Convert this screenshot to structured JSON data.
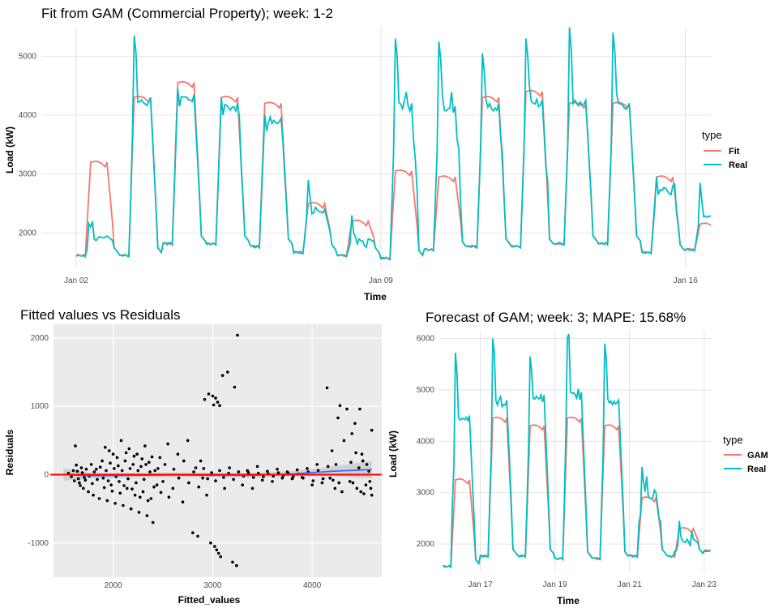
{
  "chart_data": [
    {
      "type": "line",
      "title": "Fit from GAM (Commercial Property); week: 1-2",
      "xlabel": "Time",
      "ylabel": "Load (kW)",
      "x_ticks": [
        "Jan 02",
        "Jan 09",
        "Jan 16"
      ],
      "x_range_days": [
        -0.8,
        14.6
      ],
      "ylim": [
        1400,
        5500
      ],
      "y_ticks": [
        2000,
        3000,
        4000,
        5000
      ],
      "legend_title": "type",
      "legend_position": "right",
      "background": "white",
      "grid": true,
      "series": [
        {
          "name": "Fit",
          "color": "#F8766D"
        },
        {
          "name": "Real",
          "color": "#00BFC4"
        }
      ],
      "daily_profile": [
        {
          "day": 0,
          "base": 1600,
          "fit_peak": 3200,
          "real_peak": 1950,
          "real_spike": 2100
        },
        {
          "day": 1,
          "base": 1600,
          "fit_peak": 4300,
          "real_peak": 4300,
          "real_spike": 5350
        },
        {
          "day": 2,
          "base": 1800,
          "fit_peak": 4550,
          "real_peak": 4350,
          "real_spike": 4450
        },
        {
          "day": 3,
          "base": 1800,
          "fit_peak": 4300,
          "real_peak": 4200,
          "real_spike": 4300
        },
        {
          "day": 4,
          "base": 1750,
          "fit_peak": 4200,
          "real_peak": 3950,
          "real_spike": 4000
        },
        {
          "day": 5,
          "base": 1650,
          "fit_peak": 2500,
          "real_peak": 2400,
          "real_spike": 2900
        },
        {
          "day": 6,
          "base": 1600,
          "fit_peak": 2200,
          "real_peak": 1900,
          "real_spike": 2300
        },
        {
          "day": 7,
          "base": 1550,
          "fit_peak": 3050,
          "real_peak": 4200,
          "real_spike": 5300
        },
        {
          "day": 8,
          "base": 1700,
          "fit_peak": 2950,
          "real_peak": 4150,
          "real_spike": 5250
        },
        {
          "day": 9,
          "base": 1750,
          "fit_peak": 4300,
          "real_peak": 4200,
          "real_spike": 5050
        },
        {
          "day": 10,
          "base": 1750,
          "fit_peak": 4400,
          "real_peak": 4250,
          "real_spike": 5300
        },
        {
          "day": 11,
          "base": 1800,
          "fit_peak": 4200,
          "real_peak": 4250,
          "real_spike": 5420
        },
        {
          "day": 12,
          "base": 1800,
          "fit_peak": 4200,
          "real_peak": 4200,
          "real_spike": 5400
        },
        {
          "day": 13,
          "base": 1650,
          "fit_peak": 2950,
          "real_peak": 2800,
          "real_spike": 2950
        },
        {
          "day": 14,
          "base": 1700,
          "fit_peak": 2150,
          "real_peak": 2300,
          "real_spike": 2850
        }
      ]
    },
    {
      "type": "scatter",
      "title": "Fitted values vs Residuals",
      "xlabel": "Fitted_values",
      "ylabel": "Residuals",
      "xlim": [
        1400,
        4700
      ],
      "ylim": [
        -1500,
        2200
      ],
      "x_ticks": [
        2000,
        3000,
        4000
      ],
      "y_ticks": [
        -1000,
        0,
        1000,
        2000
      ],
      "background": "#EBEBEB",
      "grid": true,
      "reference_line": {
        "y": 0,
        "color": "#FF0000"
      },
      "smooth": {
        "color": "#3366FF",
        "band_color": "#CCCCCC",
        "x": [
          1500,
          1800,
          2200,
          2600,
          3000,
          3400,
          3800,
          4200,
          4600
        ],
        "y": [
          0,
          -15,
          -10,
          -5,
          -10,
          -10,
          10,
          50,
          75
        ],
        "band_halfwidth": [
          90,
          40,
          35,
          35,
          35,
          35,
          40,
          70,
          130
        ]
      },
      "points": [
        [
          1620,
          420
        ],
        [
          1640,
          50
        ],
        [
          1650,
          -60
        ],
        [
          1660,
          -120
        ],
        [
          1680,
          100
        ],
        [
          1700,
          -200
        ],
        [
          1720,
          -80
        ],
        [
          1750,
          -250
        ],
        [
          1780,
          150
        ],
        [
          1800,
          -300
        ],
        [
          1830,
          80
        ],
        [
          1860,
          -350
        ],
        [
          1890,
          200
        ],
        [
          1900,
          -50
        ],
        [
          1920,
          400
        ],
        [
          1940,
          -380
        ],
        [
          1960,
          350
        ],
        [
          1980,
          -150
        ],
        [
          2000,
          300
        ],
        [
          2020,
          -420
        ],
        [
          2040,
          250
        ],
        [
          2060,
          -100
        ],
        [
          2080,
          500
        ],
        [
          2100,
          -450
        ],
        [
          2120,
          200
        ],
        [
          2140,
          -200
        ],
        [
          2160,
          380
        ],
        [
          2180,
          -500
        ],
        [
          2200,
          150
        ],
        [
          2220,
          -300
        ],
        [
          2240,
          300
        ],
        [
          2260,
          -550
        ],
        [
          2280,
          120
        ],
        [
          2300,
          -250
        ],
        [
          2320,
          420
        ],
        [
          2340,
          -600
        ],
        [
          2360,
          180
        ],
        [
          2380,
          -350
        ],
        [
          2400,
          -700
        ],
        [
          2420,
          60
        ],
        [
          2440,
          -150
        ],
        [
          2470,
          250
        ],
        [
          2500,
          -100
        ],
        [
          2550,
          450
        ],
        [
          2600,
          -200
        ],
        [
          2650,
          300
        ],
        [
          2700,
          -400
        ],
        [
          2750,
          500
        ],
        [
          2800,
          -850
        ],
        [
          2830,
          100
        ],
        [
          2850,
          -900
        ],
        [
          2880,
          200
        ],
        [
          2900,
          -50
        ],
        [
          2920,
          1100
        ],
        [
          2940,
          -300
        ],
        [
          2960,
          1180
        ],
        [
          2980,
          -1000
        ],
        [
          3000,
          1150
        ],
        [
          3010,
          1020
        ],
        [
          3020,
          -1050
        ],
        [
          3030,
          1120
        ],
        [
          3040,
          -1100
        ],
        [
          3050,
          1060
        ],
        [
          3060,
          -1150
        ],
        [
          3070,
          1010
        ],
        [
          3080,
          -1200
        ],
        [
          3100,
          1450
        ],
        [
          3120,
          -200
        ],
        [
          3150,
          1500
        ],
        [
          3170,
          100
        ],
        [
          3200,
          -1280
        ],
        [
          3220,
          1280
        ],
        [
          3240,
          -1330
        ],
        [
          3250,
          2040
        ],
        [
          3300,
          -150
        ],
        [
          3350,
          60
        ],
        [
          3400,
          -200
        ],
        [
          3450,
          120
        ],
        [
          3500,
          -80
        ],
        [
          3550,
          50
        ],
        [
          3600,
          -100
        ],
        [
          3650,
          80
        ],
        [
          3700,
          -50
        ],
        [
          3750,
          40
        ],
        [
          3800,
          -60
        ],
        [
          3850,
          70
        ],
        [
          3900,
          -40
        ],
        [
          3950,
          90
        ],
        [
          4000,
          -150
        ],
        [
          4050,
          150
        ],
        [
          4100,
          -120
        ],
        [
          4150,
          1270
        ],
        [
          4180,
          -50
        ],
        [
          4200,
          350
        ],
        [
          4230,
          -200
        ],
        [
          4260,
          830
        ],
        [
          4280,
          1010
        ],
        [
          4300,
          -250
        ],
        [
          4320,
          500
        ],
        [
          4350,
          960
        ],
        [
          4380,
          -100
        ],
        [
          4400,
          600
        ],
        [
          4430,
          750
        ],
        [
          4450,
          -200
        ],
        [
          4480,
          960
        ],
        [
          4500,
          300
        ],
        [
          4520,
          -280
        ],
        [
          4550,
          150
        ],
        [
          4580,
          -100
        ],
        [
          4600,
          650
        ],
        [
          4600,
          -300
        ],
        [
          4590,
          -200
        ],
        [
          4570,
          50
        ],
        [
          4540,
          -150
        ],
        [
          4510,
          200
        ],
        [
          4490,
          -250
        ],
        [
          4470,
          100
        ],
        [
          4440,
          320
        ],
        [
          4410,
          -120
        ],
        [
          4390,
          180
        ],
        [
          1550,
          20
        ],
        [
          1580,
          -30
        ],
        [
          1600,
          60
        ],
        [
          1610,
          -90
        ],
        [
          1630,
          140
        ],
        [
          1670,
          -160
        ],
        [
          1690,
          30
        ],
        [
          1710,
          -40
        ],
        [
          1730,
          80
        ],
        [
          1760,
          -20
        ],
        [
          1790,
          -130
        ],
        [
          1810,
          40
        ],
        [
          1840,
          -70
        ],
        [
          1870,
          110
        ],
        [
          1910,
          -190
        ],
        [
          1930,
          60
        ],
        [
          1950,
          -90
        ],
        [
          1970,
          170
        ],
        [
          1990,
          -240
        ],
        [
          2010,
          90
        ],
        [
          2030,
          -30
        ],
        [
          2050,
          130
        ],
        [
          2070,
          -270
        ],
        [
          2090,
          60
        ],
        [
          2110,
          -160
        ],
        [
          2130,
          320
        ],
        [
          2150,
          -60
        ],
        [
          2170,
          90
        ],
        [
          2190,
          -210
        ],
        [
          2210,
          270
        ],
        [
          2230,
          -120
        ],
        [
          2250,
          60
        ],
        [
          2270,
          -330
        ],
        [
          2290,
          230
        ],
        [
          2310,
          -70
        ],
        [
          2330,
          150
        ],
        [
          2350,
          -380
        ],
        [
          2370,
          40
        ],
        [
          2390,
          260
        ],
        [
          2410,
          -180
        ],
        [
          2450,
          90
        ],
        [
          2480,
          -260
        ],
        [
          2520,
          150
        ],
        [
          2560,
          -330
        ],
        [
          2610,
          80
        ],
        [
          2660,
          -50
        ],
        [
          2710,
          200
        ],
        [
          2760,
          -120
        ],
        [
          2810,
          40
        ],
        [
          2860,
          -180
        ],
        [
          2910,
          90
        ],
        [
          2950,
          -60
        ],
        [
          2990,
          30
        ],
        [
          3030,
          -90
        ],
        [
          3070,
          60
        ],
        [
          3110,
          -40
        ],
        [
          3160,
          20
        ],
        [
          3210,
          -70
        ],
        [
          3260,
          40
        ],
        [
          3310,
          -20
        ],
        [
          3360,
          30
        ],
        [
          3410,
          -40
        ],
        [
          3460,
          20
        ],
        [
          3510,
          -30
        ],
        [
          3560,
          10
        ],
        [
          3610,
          -20
        ],
        [
          3660,
          30
        ],
        [
          3710,
          -10
        ],
        [
          3760,
          20
        ],
        [
          3810,
          -30
        ],
        [
          3860,
          10
        ],
        [
          3910,
          -50
        ],
        [
          3960,
          40
        ],
        [
          4010,
          -90
        ],
        [
          4060,
          60
        ],
        [
          4110,
          -60
        ],
        [
          4160,
          120
        ],
        [
          4210,
          -80
        ],
        [
          4240,
          150
        ],
        [
          4270,
          -120
        ]
      ]
    },
    {
      "type": "line",
      "title": "Forecast of GAM; week: 3; MAPE: 15.68%",
      "xlabel": "Time",
      "ylabel": "Load (kW)",
      "x_ticks": [
        "Jan 17",
        "Jan 19",
        "Jan 21",
        "Jan 23"
      ],
      "x_range_days": [
        -0.1,
        7.2
      ],
      "ylim": [
        1450,
        6150
      ],
      "y_ticks": [
        2000,
        3000,
        4000,
        5000,
        6000
      ],
      "legend_title": "type",
      "legend_position": "right",
      "background": "white",
      "grid": true,
      "series": [
        {
          "name": "GAM",
          "color": "#F8766D"
        },
        {
          "name": "Real",
          "color": "#00BFC4"
        }
      ],
      "daily_profile": [
        {
          "day": 0,
          "base": 1550,
          "fit_peak": 3250,
          "real_peak": 4500,
          "real_spike": 5600
        },
        {
          "day": 1,
          "base": 1750,
          "fit_peak": 4450,
          "real_peak": 4800,
          "real_spike": 6000
        },
        {
          "day": 2,
          "base": 1750,
          "fit_peak": 4300,
          "real_peak": 4900,
          "real_spike": 5650
        },
        {
          "day": 3,
          "base": 1700,
          "fit_peak": 4450,
          "real_peak": 4950,
          "real_spike": 6020
        },
        {
          "day": 4,
          "base": 1700,
          "fit_peak": 4300,
          "real_peak": 4800,
          "real_spike": 5900
        },
        {
          "day": 5,
          "base": 1750,
          "fit_peak": 2900,
          "real_peak": 3000,
          "real_spike": 3500
        },
        {
          "day": 6,
          "base": 1750,
          "fit_peak": 2300,
          "real_peak": 2100,
          "real_spike": 2450
        },
        {
          "day": 7,
          "base": 1850,
          "fit_peak": 1900,
          "real_peak": 1900,
          "real_spike": 1950
        }
      ]
    }
  ]
}
